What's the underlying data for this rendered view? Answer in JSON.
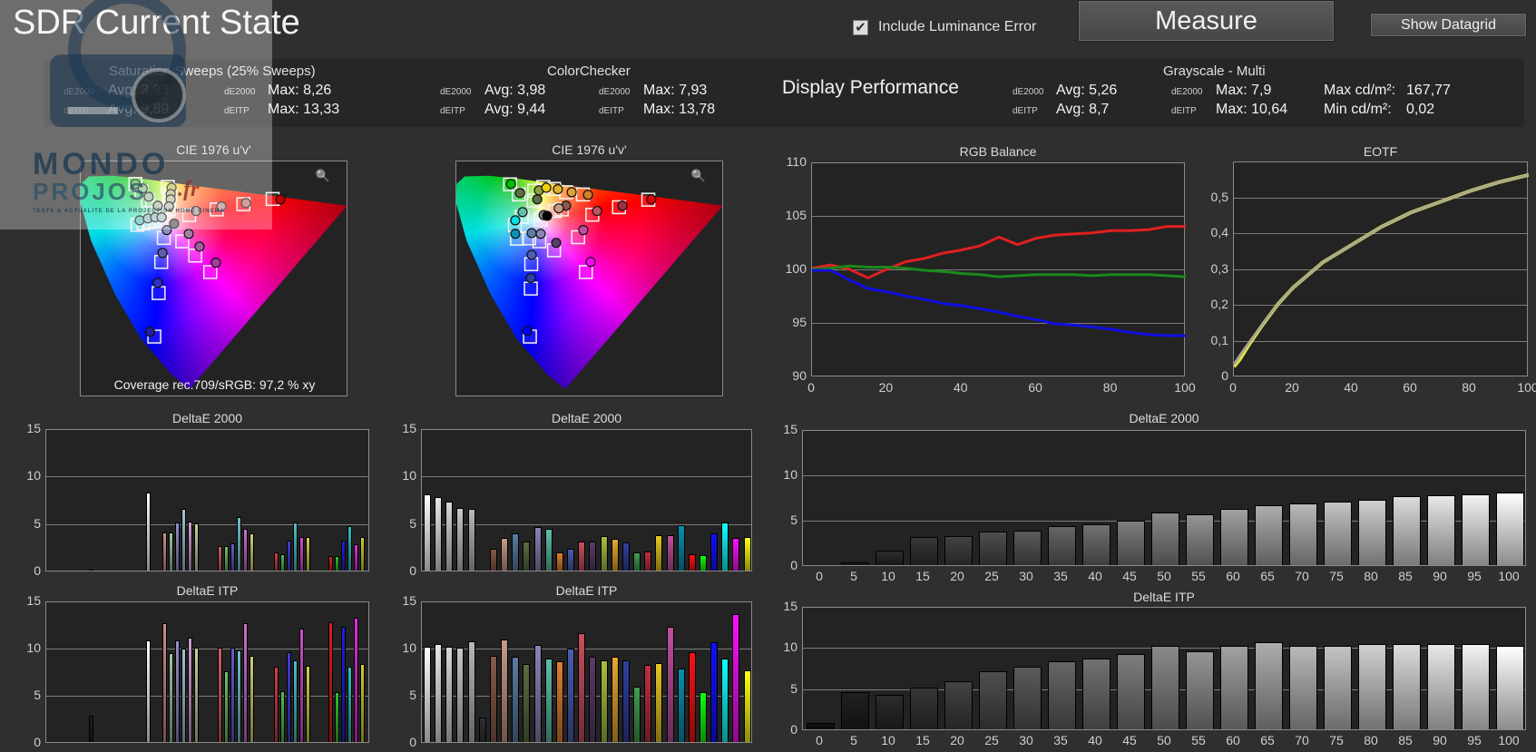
{
  "header": {
    "title": "SDR Current State",
    "include_luminance_label": "Include Luminance Error",
    "include_luminance_checked": true,
    "measure_label": "Measure",
    "datagrid_label": "Show Datagrid"
  },
  "summary": {
    "saturation": {
      "title": "Saturation Sweeps (25% Sweeps)",
      "rows": [
        {
          "metric": "dE2000",
          "avg": "Avg: 3,93",
          "metric2": "dE2000",
          "max": "Max: 8,26"
        },
        {
          "metric": "dEITP",
          "avg": "Avg: 9,89",
          "metric2": "dEITP",
          "max": "Max: 13,33"
        }
      ]
    },
    "colorchecker": {
      "title": "ColorChecker",
      "rows": [
        {
          "metric": "dE2000",
          "avg": "Avg: 3,98",
          "metric2": "dE2000",
          "max": "Max: 7,93"
        },
        {
          "metric": "dEITP",
          "avg": "Avg: 9,44",
          "metric2": "dEITP",
          "max": "Max: 13,78"
        }
      ]
    },
    "display_performance": "Display Performance",
    "grayscale": {
      "title": "Grayscale - Multi",
      "rows": [
        {
          "metric": "dE2000",
          "avg": "Avg: 5,26",
          "metric2": "dE2000",
          "max": "Max: 7,9",
          "lum_label": "Max cd/m²:",
          "lum": "167,77"
        },
        {
          "metric": "dEITP",
          "avg": "Avg: 8,7",
          "metric2": "dEITP",
          "max": "Max: 10,64",
          "lum_label": "Min cd/m²:",
          "lum": "0,02"
        }
      ]
    }
  },
  "watermark": {
    "line1": "MONDO",
    "line2": "PROJOS",
    "suffix": ".fr",
    "tagline": "TESTS & ACTUALITE DE LA PROJECTION HOME CINEMA"
  },
  "colors": {
    "red": "#e02020",
    "green": "#1a8a1a",
    "blue": "#1010e0",
    "eotf": "#a8a890",
    "eotf_target": "#e8e840"
  },
  "chart_data": [
    {
      "id": "cie-sat",
      "type": "scatter",
      "title": "CIE 1976 u'v'",
      "annotation": "Coverage rec.709/sRGB:  97,2 % xy",
      "xlim": [
        0.004,
        0.626
      ],
      "ylim": [
        -0.005,
        0.624
      ],
      "targets": [
        [
          0.45,
          0.524
        ],
        [
          0.382,
          0.51
        ],
        [
          0.32,
          0.496
        ],
        [
          0.256,
          0.481
        ],
        [
          0.131,
          0.564
        ],
        [
          0.145,
          0.544
        ],
        [
          0.16,
          0.52
        ],
        [
          0.17,
          0.5
        ],
        [
          0.175,
          0.157
        ],
        [
          0.185,
          0.273
        ],
        [
          0.191,
          0.356
        ],
        [
          0.197,
          0.42
        ],
        [
          0.305,
          0.329
        ],
        [
          0.27,
          0.373
        ],
        [
          0.24,
          0.411
        ],
        [
          0.136,
          0.455
        ],
        [
          0.15,
          0.459
        ],
        [
          0.163,
          0.463
        ],
        [
          0.177,
          0.465
        ],
        [
          0.206,
          0.556
        ],
        [
          0.212,
          0.536
        ],
        [
          0.21,
          0.516
        ],
        [
          0.208,
          0.496
        ],
        [
          0.2,
          0.469
        ]
      ],
      "measured": [
        [
          0.468,
          0.523,
          "#c00000"
        ],
        [
          0.388,
          0.513,
          "#c07070"
        ],
        [
          0.331,
          0.504,
          "#c09090"
        ],
        [
          0.272,
          0.492,
          "#b0a0a0"
        ],
        [
          0.131,
          0.564,
          "#60c060"
        ],
        [
          0.148,
          0.552,
          "#90c090"
        ],
        [
          0.162,
          0.53,
          "#a0c0a0"
        ],
        [
          0.183,
          0.506,
          "#b0c0b0"
        ],
        [
          0.165,
          0.17,
          "#2020a0"
        ],
        [
          0.183,
          0.3,
          "#3030c0"
        ],
        [
          0.194,
          0.38,
          "#6060b0"
        ],
        [
          0.204,
          0.441,
          "#9090c0"
        ],
        [
          0.318,
          0.354,
          "#a040a0"
        ],
        [
          0.28,
          0.397,
          "#a060a0"
        ],
        [
          0.255,
          0.431,
          "#a080a0"
        ],
        [
          0.141,
          0.467,
          "#60c0c0"
        ],
        [
          0.16,
          0.472,
          "#90c0c0"
        ],
        [
          0.177,
          0.475,
          "#a0c0c0"
        ],
        [
          0.192,
          0.475,
          "#b0c0c0"
        ],
        [
          0.215,
          0.554,
          "#c0c060"
        ],
        [
          0.213,
          0.537,
          "#c0c090"
        ],
        [
          0.213,
          0.523,
          "#c0c0a0"
        ],
        [
          0.209,
          0.504,
          "#c0c0b0"
        ],
        [
          0.221,
          0.458,
          "#606060"
        ]
      ]
    },
    {
      "id": "cie-cc",
      "type": "scatter",
      "title": "CIE 1976 u'v'",
      "xlim": [
        0.004,
        0.626
      ],
      "ylim": [
        -0.005,
        0.624
      ],
      "targets": [
        [
          0.129,
          0.563
        ],
        [
          0.149,
          0.536
        ],
        [
          0.185,
          0.546
        ],
        [
          0.206,
          0.556
        ],
        [
          0.231,
          0.551
        ],
        [
          0.259,
          0.542
        ],
        [
          0.298,
          0.536
        ],
        [
          0.382,
          0.502
        ],
        [
          0.45,
          0.522
        ],
        [
          0.32,
          0.482
        ],
        [
          0.249,
          0.496
        ],
        [
          0.233,
          0.492
        ],
        [
          0.184,
          0.52
        ],
        [
          0.156,
          0.476
        ],
        [
          0.14,
          0.454
        ],
        [
          0.145,
          0.418
        ],
        [
          0.173,
          0.419
        ],
        [
          0.197,
          0.411
        ],
        [
          0.231,
          0.387
        ],
        [
          0.287,
          0.422
        ],
        [
          0.305,
          0.329
        ],
        [
          0.178,
          0.35
        ],
        [
          0.177,
          0.285
        ],
        [
          0.175,
          0.157
        ],
        [
          0.2,
          0.469
        ]
      ],
      "measured": [
        [
          0.131,
          0.564,
          "#00c000"
        ],
        [
          0.152,
          0.54,
          "#5a7040"
        ],
        [
          0.196,
          0.547,
          "#90a040"
        ],
        [
          0.213,
          0.554,
          "#f0d000"
        ],
        [
          0.24,
          0.55,
          "#e0b030"
        ],
        [
          0.272,
          0.542,
          "#e0a030"
        ],
        [
          0.31,
          0.535,
          "#d08030"
        ],
        [
          0.39,
          0.506,
          "#a03040"
        ],
        [
          0.457,
          0.523,
          "#e00000"
        ],
        [
          0.331,
          0.492,
          "#c05060"
        ],
        [
          0.259,
          0.506,
          "#8a5a4a"
        ],
        [
          0.242,
          0.499,
          "#c89a88"
        ],
        [
          0.192,
          0.523,
          "#5a6e40"
        ],
        [
          0.158,
          0.489,
          "#5ec0aa"
        ],
        [
          0.141,
          0.467,
          "#00e0e0"
        ],
        [
          0.141,
          0.431,
          "#0890b0"
        ],
        [
          0.179,
          0.433,
          "#5a7ea0"
        ],
        [
          0.2,
          0.431,
          "#8a86b8"
        ],
        [
          0.236,
          0.407,
          "#5a3c6a"
        ],
        [
          0.299,
          0.441,
          "#c050a0"
        ],
        [
          0.316,
          0.356,
          "#ff00ff"
        ],
        [
          0.179,
          0.375,
          "#4a5eb0"
        ],
        [
          0.177,
          0.313,
          "#3040a0"
        ],
        [
          0.169,
          0.172,
          "#0000ff"
        ],
        [
          0.207,
          0.481,
          "#888888"
        ],
        [
          0.215,
          0.479,
          "#000000"
        ]
      ]
    },
    {
      "id": "rgb-balance",
      "type": "line",
      "title": "RGB Balance",
      "x": [
        0,
        5,
        10,
        15,
        20,
        25,
        30,
        35,
        40,
        45,
        50,
        55,
        60,
        65,
        70,
        75,
        80,
        85,
        90,
        95,
        100
      ],
      "xlim": [
        0,
        100
      ],
      "ylim": [
        90,
        110
      ],
      "xticks": [
        "0",
        "20",
        "40",
        "60",
        "80",
        "100"
      ],
      "yticks": [
        "90",
        "95",
        "100",
        "105",
        "110"
      ],
      "series": [
        {
          "name": "Red",
          "values": [
            100.2,
            100.5,
            100.1,
            99.3,
            100.1,
            100.8,
            101.1,
            101.6,
            101.9,
            102.3,
            103.1,
            102.4,
            103.0,
            103.3,
            103.4,
            103.5,
            103.7,
            103.7,
            103.8,
            104.1,
            104.1
          ]
        },
        {
          "name": "Green",
          "values": [
            100.1,
            100.2,
            100.4,
            100.3,
            100.3,
            100.2,
            100.0,
            99.9,
            99.7,
            99.6,
            99.4,
            99.5,
            99.6,
            99.6,
            99.6,
            99.5,
            99.6,
            99.6,
            99.6,
            99.5,
            99.4
          ]
        },
        {
          "name": "Blue",
          "values": [
            100.0,
            100.0,
            99.1,
            98.3,
            98.0,
            97.6,
            97.3,
            96.9,
            96.7,
            96.4,
            96.1,
            95.7,
            95.4,
            95.0,
            94.9,
            94.7,
            94.5,
            94.2,
            94.0,
            93.9,
            93.9
          ]
        }
      ]
    },
    {
      "id": "eotf",
      "type": "line",
      "title": "EOTF",
      "x": [
        0,
        2,
        5,
        10,
        15,
        20,
        30,
        40,
        50,
        60,
        70,
        80,
        90,
        100
      ],
      "xlim": [
        0,
        100
      ],
      "ylim": [
        0,
        0.6
      ],
      "xticks": [
        "0",
        "20",
        "40",
        "60",
        "80",
        "100"
      ],
      "yticks": [
        "0",
        "0,1",
        "0,2",
        "0,3",
        "0,4",
        "0,5"
      ],
      "series": [
        {
          "name": "Target",
          "values": [
            0.03,
            0.05,
            0.09,
            0.15,
            0.205,
            0.25,
            0.32,
            0.37,
            0.42,
            0.46,
            0.49,
            0.52,
            0.545,
            0.565
          ]
        },
        {
          "name": "Measured",
          "values": [
            0.035,
            0.06,
            0.095,
            0.152,
            0.205,
            0.25,
            0.32,
            0.37,
            0.42,
            0.46,
            0.49,
            0.52,
            0.545,
            0.565
          ]
        }
      ]
    },
    {
      "id": "sat-de2000",
      "type": "bar",
      "title": "DeltaE 2000",
      "ylim": [
        0,
        15
      ],
      "yticks": [
        "0",
        "5",
        "10",
        "15"
      ],
      "values": [
        0.1,
        8.2,
        4.0,
        4.0,
        5.1,
        6.5,
        5.2,
        5.0,
        2.6,
        2.6,
        2.9,
        5.6,
        4.4,
        3.9,
        1.9,
        1.7,
        3.2,
        5.1,
        3.5,
        3.5,
        1.5,
        1.5,
        3.2,
        4.7,
        2.8,
        3.5
      ],
      "colors": [
        "#202020",
        "#ffffff",
        "#d09090",
        "#a0c8a0",
        "#9090d0",
        "#a0c8d8",
        "#d0a0d0",
        "#d0d0a0",
        "#d06060",
        "#70c070",
        "#6060d0",
        "#70c0d0",
        "#d070d0",
        "#d0d070",
        "#d04040",
        "#50c050",
        "#4040d0",
        "#50c0c8",
        "#d050d0",
        "#d0d050",
        "#e02020",
        "#30c030",
        "#2020e0",
        "#30c0c0",
        "#e030e0",
        "#d0d030"
      ]
    },
    {
      "id": "cc-de2000",
      "type": "bar",
      "title": "DeltaE 2000",
      "ylim": [
        0,
        15
      ],
      "yticks": [
        "0",
        "5",
        "10",
        "15"
      ],
      "values": [
        8.0,
        7.7,
        7.3,
        6.6,
        6.5,
        0,
        2.3,
        3.4,
        3.9,
        3.1,
        4.6,
        4.4,
        1.9,
        2.3,
        3.1,
        3.1,
        3.6,
        3.3,
        3.0,
        1.9,
        2.0,
        3.7,
        3.7,
        4.8,
        1.7,
        1.6,
        3.9,
        5.1,
        3.4,
        3.5
      ],
      "colors": [
        "#ffffff",
        "#e8e8e8",
        "#d8d8d8",
        "#c8c8c8",
        "#b8b8b8",
        "#303030",
        "#8a5a4a",
        "#c89a88",
        "#5a7ea0",
        "#5a6e40",
        "#8a86b8",
        "#5ec0aa",
        "#e08030",
        "#4a5eb0",
        "#c85060",
        "#5a3c6a",
        "#a8c040",
        "#e8a830",
        "#3040a0",
        "#40a050",
        "#c03040",
        "#e8c820",
        "#c050a0",
        "#0890b0",
        "#ff1010",
        "#10ff10",
        "#1010ff",
        "#10ffff",
        "#ff10ff",
        "#ffff10"
      ]
    },
    {
      "id": "gray-de2000",
      "type": "bar",
      "title": "DeltaE 2000",
      "ylim": [
        0,
        15
      ],
      "yticks": [
        "0",
        "5",
        "10",
        "15"
      ],
      "categories": [
        "0",
        "5",
        "10",
        "15",
        "20",
        "25",
        "30",
        "35",
        "40",
        "45",
        "50",
        "55",
        "60",
        "65",
        "70",
        "75",
        "80",
        "85",
        "90",
        "95",
        "100"
      ],
      "values": [
        0,
        0.3,
        1.6,
        3.1,
        3.2,
        3.7,
        3.8,
        4.3,
        4.5,
        4.9,
        5.8,
        5.6,
        6.2,
        6.6,
        6.8,
        7.0,
        7.2,
        7.6,
        7.7,
        7.8,
        8.0
      ]
    },
    {
      "id": "sat-itp",
      "type": "bar",
      "title": "DeltaE ITP",
      "ylim": [
        0,
        15
      ],
      "yticks": [
        "0",
        "5",
        "10",
        "15"
      ],
      "values": [
        2.8,
        10.8,
        12.6,
        9.4,
        10.8,
        9.9,
        11.1,
        10.0,
        10.0,
        7.5,
        10.0,
        9.7,
        12.6,
        9.1,
        8.0,
        5.4,
        9.5,
        8.7,
        12.0,
        8.1,
        12.7,
        5.3,
        12.2,
        8.0,
        13.2,
        8.3
      ],
      "colors": [
        "#202020",
        "#ffffff",
        "#d09090",
        "#a0c8a0",
        "#9090d0",
        "#a0c8d8",
        "#d0a0d0",
        "#d0d0a0",
        "#d06060",
        "#70c070",
        "#6060d0",
        "#70c0d0",
        "#d070d0",
        "#d0d070",
        "#d04040",
        "#50c050",
        "#4040d0",
        "#50c0c8",
        "#d050d0",
        "#d0d050",
        "#e02020",
        "#30c030",
        "#2020e0",
        "#30c0c0",
        "#e030e0",
        "#d0d030"
      ]
    },
    {
      "id": "cc-itp",
      "type": "bar",
      "title": "DeltaE ITP",
      "ylim": [
        0,
        15
      ],
      "yticks": [
        "0",
        "5",
        "10",
        "15"
      ],
      "values": [
        10.1,
        10.4,
        10.1,
        10.0,
        10.7,
        2.6,
        9.1,
        10.9,
        9.0,
        8.3,
        10.3,
        8.8,
        8.6,
        9.9,
        11.5,
        9.0,
        8.7,
        9.0,
        8.7,
        5.9,
        8.2,
        8.4,
        12.2,
        7.8,
        9.5,
        5.3,
        10.6,
        8.8,
        13.6,
        7.6
      ],
      "colors": [
        "#ffffff",
        "#e8e8e8",
        "#d8d8d8",
        "#c8c8c8",
        "#b8b8b8",
        "#303030",
        "#8a5a4a",
        "#c89a88",
        "#5a7ea0",
        "#5a6e40",
        "#8a86b8",
        "#5ec0aa",
        "#e08030",
        "#4a5eb0",
        "#c85060",
        "#5a3c6a",
        "#a8c040",
        "#e8a830",
        "#3040a0",
        "#40a050",
        "#c03040",
        "#e8c820",
        "#c050a0",
        "#0890b0",
        "#ff1010",
        "#10ff10",
        "#1010ff",
        "#10ffff",
        "#ff10ff",
        "#ffff10"
      ]
    },
    {
      "id": "gray-itp",
      "type": "bar",
      "title": "DeltaE ITP",
      "ylim": [
        0,
        15
      ],
      "yticks": [
        "0",
        "5",
        "10",
        "15"
      ],
      "categories": [
        "0",
        "5",
        "10",
        "15",
        "20",
        "25",
        "30",
        "35",
        "40",
        "45",
        "50",
        "55",
        "60",
        "65",
        "70",
        "75",
        "80",
        "85",
        "90",
        "95",
        "100"
      ],
      "values": [
        0.8,
        4.5,
        4.2,
        5.1,
        5.9,
        7.1,
        7.6,
        8.3,
        8.6,
        9.2,
        10.2,
        9.5,
        10.1,
        10.6,
        10.2,
        10.2,
        10.4,
        10.4,
        10.4,
        10.4,
        10.2
      ]
    }
  ]
}
